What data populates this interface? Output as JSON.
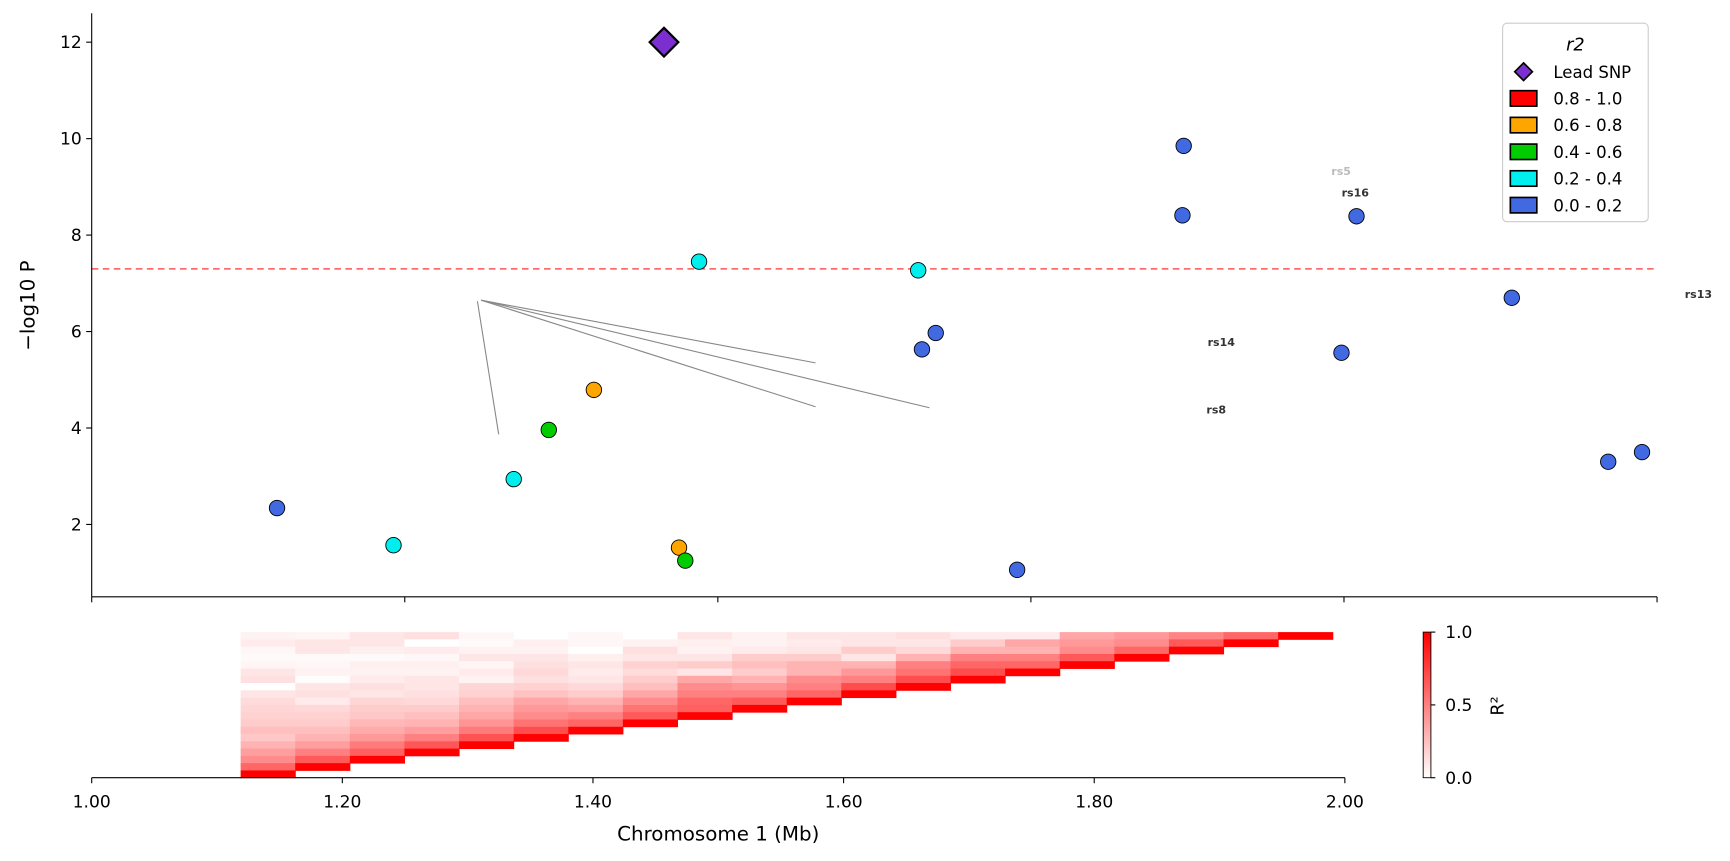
{
  "chart_data": [
    {
      "type": "scatter",
      "ylabel": "−log10 P",
      "ylim": [
        0.5,
        12.6
      ],
      "xlim": [
        1.0,
        2.25
      ],
      "x_ticks": [
        1.0,
        1.25,
        1.5,
        1.75,
        2.0,
        2.25
      ],
      "y_ticks": [
        "2",
        "4",
        "6",
        "8",
        "10",
        "12"
      ],
      "x_tick_labels_shown": false,
      "significance_threshold": 7.3,
      "threshold_color": "#ff5555",
      "legend": {
        "title": "r2",
        "placement": "top-right",
        "entries": [
          {
            "label": "Lead SNP",
            "color": "#7b2fd0",
            "marker": "diamond"
          },
          {
            "label": "0.8 - 1.0",
            "color": "#ff0000",
            "marker": "square"
          },
          {
            "label": "0.6 - 0.8",
            "color": "#ffa500",
            "marker": "square"
          },
          {
            "label": "0.4 - 0.6",
            "color": "#00cc00",
            "marker": "square"
          },
          {
            "label": "0.2 - 0.4",
            "color": "#00eeee",
            "marker": "square"
          },
          {
            "label": "0.0 - 0.2",
            "color": "#4169e1",
            "marker": "square"
          }
        ]
      },
      "lead_snp": {
        "x": 1.457,
        "y": 12.0,
        "color": "#7b2fd0"
      },
      "points": [
        {
          "x": 1.148,
          "y": 2.34,
          "bin": "0.0 - 0.2"
        },
        {
          "x": 1.241,
          "y": 1.57,
          "bin": "0.2 - 0.4"
        },
        {
          "x": 1.337,
          "y": 2.94,
          "bin": "0.2 - 0.4"
        },
        {
          "x": 1.365,
          "y": 3.96,
          "bin": "0.4 - 0.6"
        },
        {
          "x": 1.401,
          "y": 4.79,
          "bin": "0.6 - 0.8"
        },
        {
          "x": 1.469,
          "y": 1.52,
          "bin": "0.6 - 0.8"
        },
        {
          "x": 1.474,
          "y": 1.25,
          "bin": "0.4 - 0.6"
        },
        {
          "x": 1.485,
          "y": 7.45,
          "bin": "0.2 - 0.4"
        },
        {
          "x": 1.66,
          "y": 7.27,
          "bin": "0.2 - 0.4"
        },
        {
          "x": 1.663,
          "y": 5.63,
          "bin": "0.0 - 0.2"
        },
        {
          "x": 1.674,
          "y": 5.97,
          "bin": "0.0 - 0.2"
        },
        {
          "x": 1.739,
          "y": 1.06,
          "bin": "0.0 - 0.2"
        },
        {
          "x": 1.872,
          "y": 9.85,
          "bin": "0.0 - 0.2"
        },
        {
          "x": 1.871,
          "y": 8.41,
          "bin": "0.0 - 0.2"
        },
        {
          "x": 2.01,
          "y": 8.39,
          "bin": "0.0 - 0.2"
        },
        {
          "x": 1.998,
          "y": 5.56,
          "bin": "0.0 - 0.2"
        },
        {
          "x": 2.134,
          "y": 6.7,
          "bin": "0.0 - 0.2"
        },
        {
          "x": 2.211,
          "y": 3.3,
          "bin": "0.0 - 0.2"
        },
        {
          "x": 2.238,
          "y": 3.5,
          "bin": "0.0 - 0.2"
        }
      ],
      "annotations": [
        {
          "text": "rs16",
          "x": 2.009,
          "y": 8.8,
          "faded": false
        },
        {
          "text": "rs5",
          "x": 2.003,
          "y": 8.95,
          "faded": true
        },
        {
          "text": "rs14",
          "x": 1.902,
          "y": 5.7,
          "faded": false
        },
        {
          "text": "rs8",
          "x": 1.898,
          "y": 4.3,
          "faded": false
        },
        {
          "text": "rs13",
          "x": 2.283,
          "y": 6.7,
          "faded": false
        }
      ],
      "leader_lines": [
        {
          "from": [
            1.311,
            6.65
          ],
          "to": [
            1.578,
            5.35
          ]
        },
        {
          "from": [
            1.311,
            6.65
          ],
          "to": [
            1.669,
            4.42
          ]
        },
        {
          "from": [
            1.311,
            6.65
          ],
          "to": [
            1.578,
            4.44
          ]
        },
        {
          "from": [
            1.308,
            6.63
          ],
          "to": [
            1.325,
            3.87
          ]
        }
      ]
    },
    {
      "type": "heatmap",
      "xlabel": "Chromosome 1 (Mb)",
      "xlim": [
        1.0,
        2.0
      ],
      "x_tick_labels": [
        "1.00",
        "1.20",
        "1.40",
        "1.60",
        "1.80",
        "2.00"
      ],
      "colorbar": {
        "label": "R²",
        "tick_labels": [
          "0.0",
          "0.5",
          "1.0"
        ],
        "range": [
          0,
          1
        ],
        "colors": [
          "#ffffff",
          "#ff0000"
        ]
      },
      "columns": [
        [
          0.05,
          0.08,
          0.03,
          0.02,
          0.04,
          0.1,
          0.12,
          0.0,
          0.1,
          0.14,
          0.16,
          0.18,
          0.2,
          0.25,
          0.22,
          0.3,
          0.38,
          0.45,
          0.6,
          1.0
        ],
        [
          0.04,
          0.1,
          0.1,
          0.02,
          0.03,
          0.05,
          0.01,
          0.1,
          0.12,
          0.08,
          0.15,
          0.18,
          0.2,
          0.25,
          0.3,
          0.38,
          0.5,
          0.65,
          1.0
        ],
        [
          0.1,
          0.1,
          0.06,
          0.02,
          0.06,
          0.05,
          0.08,
          0.12,
          0.1,
          0.16,
          0.2,
          0.22,
          0.28,
          0.33,
          0.4,
          0.52,
          0.62,
          1.0
        ],
        [
          0.12,
          0.0,
          0.08,
          0.03,
          0.06,
          0.05,
          0.1,
          0.1,
          0.12,
          0.15,
          0.2,
          0.25,
          0.3,
          0.38,
          0.5,
          0.66,
          1.0
        ],
        [
          0.03,
          0.02,
          0.05,
          0.1,
          0.04,
          0.08,
          0.05,
          0.16,
          0.18,
          0.25,
          0.3,
          0.35,
          0.42,
          0.52,
          0.68,
          1.0
        ],
        [
          0.0,
          0.06,
          0.05,
          0.1,
          0.12,
          0.15,
          0.12,
          0.18,
          0.24,
          0.35,
          0.4,
          0.45,
          0.55,
          0.7,
          1.0
        ],
        [
          0.03,
          0.03,
          0.0,
          0.06,
          0.1,
          0.08,
          0.1,
          0.15,
          0.2,
          0.3,
          0.38,
          0.5,
          0.6,
          1.0
        ],
        [
          0.0,
          0.05,
          0.12,
          0.1,
          0.18,
          0.14,
          0.2,
          0.25,
          0.35,
          0.45,
          0.55,
          0.65,
          1.0
        ],
        [
          0.1,
          0.06,
          0.05,
          0.1,
          0.2,
          0.1,
          0.35,
          0.45,
          0.5,
          0.6,
          0.62,
          1.0
        ],
        [
          0.05,
          0.05,
          0.08,
          0.2,
          0.25,
          0.2,
          0.3,
          0.42,
          0.5,
          0.65,
          1.0
        ],
        [
          0.1,
          0.08,
          0.1,
          0.2,
          0.3,
          0.3,
          0.45,
          0.5,
          0.6,
          1.0
        ],
        [
          0.1,
          0.1,
          0.2,
          0.1,
          0.3,
          0.4,
          0.5,
          0.7,
          1.0
        ],
        [
          0.12,
          0.1,
          0.15,
          0.3,
          0.5,
          0.55,
          0.7,
          1.0
        ],
        [
          0.08,
          0.2,
          0.3,
          0.5,
          0.6,
          0.7,
          1.0
        ],
        [
          0.08,
          0.35,
          0.3,
          0.5,
          0.6,
          1.0
        ],
        [
          0.35,
          0.4,
          0.45,
          0.65,
          1.0
        ],
        [
          0.4,
          0.45,
          0.6,
          1.0
        ],
        [
          0.48,
          0.65,
          1.0
        ],
        [
          0.6,
          1.0
        ],
        [
          1.0
        ]
      ]
    }
  ]
}
